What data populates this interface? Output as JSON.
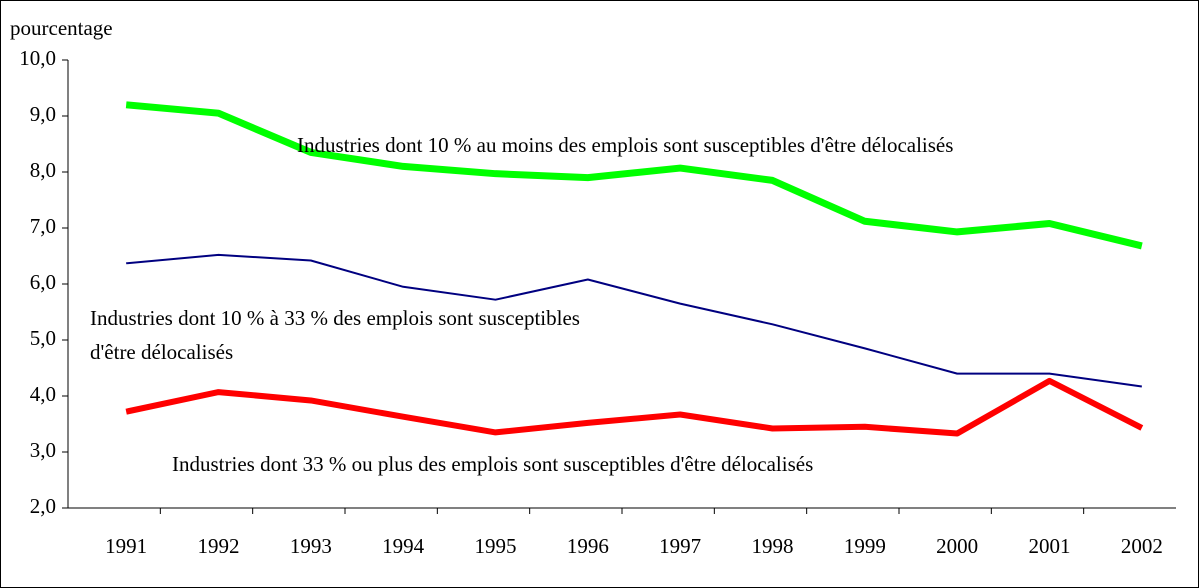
{
  "chart_data": {
    "type": "line",
    "y_label": "pourcentage",
    "categories": [
      "1991",
      "1992",
      "1993",
      "1994",
      "1995",
      "1996",
      "1997",
      "1998",
      "1999",
      "2000",
      "2001",
      "2002"
    ],
    "series": [
      {
        "name": "Industries dont 10 % au moins des emplois sont susceptibles d'être délocalisés",
        "color": "#00ff00",
        "values": [
          9.2,
          9.05,
          8.35,
          8.1,
          7.97,
          7.9,
          8.07,
          7.85,
          7.12,
          6.93,
          7.08,
          6.68
        ]
      },
      {
        "name": "Industries dont 10 % à 33 % des emplois sont susceptibles d'être délocalisés",
        "color": "#000080",
        "values": [
          6.37,
          6.52,
          6.42,
          5.95,
          5.72,
          6.08,
          5.65,
          5.28,
          4.85,
          4.4,
          4.4,
          4.17
        ]
      },
      {
        "name": "Industries dont 33 % ou plus des emplois sont susceptibles d'être délocalisés",
        "color": "#ff0000",
        "values": [
          3.72,
          4.07,
          3.92,
          3.63,
          3.35,
          3.52,
          3.67,
          3.42,
          3.45,
          3.33,
          4.27,
          3.43
        ]
      }
    ],
    "ylim": [
      2,
      10
    ],
    "yticks": [
      {
        "value": 2,
        "label": "2,0"
      },
      {
        "value": 3,
        "label": "3,0"
      },
      {
        "value": 4,
        "label": "4,0"
      },
      {
        "value": 5,
        "label": "5,0"
      },
      {
        "value": 6,
        "label": "6,0"
      },
      {
        "value": 7,
        "label": "7,0"
      },
      {
        "value": 8,
        "label": "8,0"
      },
      {
        "value": 9,
        "label": "9,0"
      },
      {
        "value": 10,
        "label": "10,0"
      }
    ]
  }
}
